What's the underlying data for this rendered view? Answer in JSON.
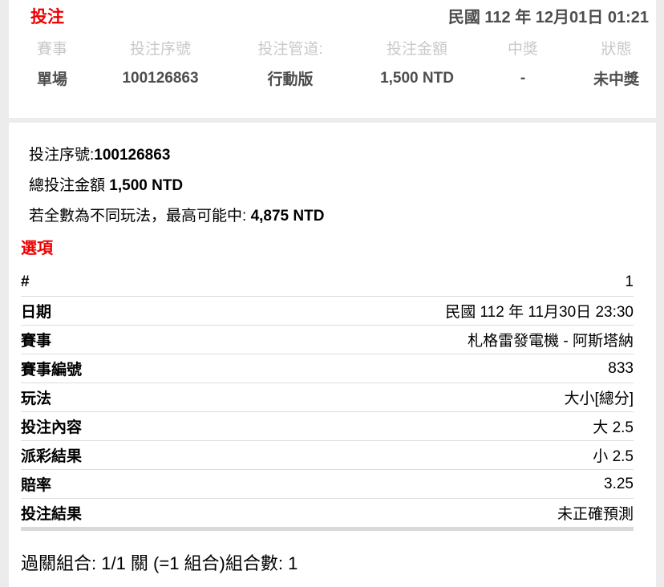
{
  "page": {
    "title": "投注",
    "datetime": "民國 112 年 12月01日 01:21"
  },
  "summary_table": {
    "columns": [
      {
        "label": "賽事",
        "value": "單場"
      },
      {
        "label": "投注序號",
        "value": "100126863"
      },
      {
        "label": "投注管道:",
        "value": "行動版"
      },
      {
        "label": "投注金額",
        "value": "1,500 NTD"
      },
      {
        "label": "中獎",
        "value": "-"
      },
      {
        "label": "狀態",
        "value": "未中獎"
      }
    ]
  },
  "detail": {
    "serial_label": "投注序號:",
    "serial_value": "100126863",
    "total_label": "總投注金額 ",
    "total_value": "1,500 NTD",
    "max_label": "若全數為不同玩法，最高可能中: ",
    "max_value": "4,875 NTD",
    "options_title": "選項",
    "rows": [
      {
        "label": "#",
        "value": "1"
      },
      {
        "label": "日期",
        "value": "民國 112 年 11月30日 23:30"
      },
      {
        "label": "賽事",
        "value": "札格雷發電機 - 阿斯塔納"
      },
      {
        "label": "賽事編號",
        "value": "833"
      },
      {
        "label": "玩法",
        "value": "大小[總分]"
      },
      {
        "label": "投注內容",
        "value": "大 2.5"
      },
      {
        "label": "派彩結果",
        "value": "小 2.5"
      },
      {
        "label": "賠率",
        "value": "3.25"
      },
      {
        "label": "投注結果",
        "value": "未正確預測"
      }
    ],
    "combo_line": "過關組合: 1/1 關 (=1 組合)組合數: 1"
  },
  "colors": {
    "accent_red": "#ee0000",
    "muted_gray": "#c9c9c9",
    "bold_gray": "#4d4d4d",
    "divider": "#dcdcdc",
    "page_background": "#ececec"
  }
}
